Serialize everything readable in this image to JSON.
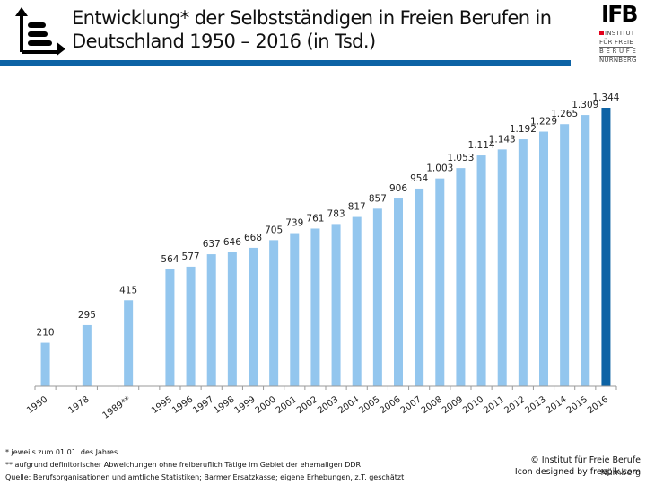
{
  "header": {
    "title_line1": "Entwicklung* der Selbstständigen in Freien Berufen in",
    "title_line2": "Deutschland 1950 – 2016 (in Tsd.)",
    "icon": "bar-chart-icon",
    "rule_color": "#0d63a5"
  },
  "logo": {
    "mark": "IFB",
    "line1": "INSTITUT",
    "line2": "FÜR FREIE",
    "line3": "B E R U F E",
    "line4": "NÜRNBERG",
    "accent_color": "#e3001b"
  },
  "chart_data": {
    "type": "bar",
    "title": "Entwicklung* der Selbstständigen in Freien Berufen in Deutschland 1950 – 2016 (in Tsd.)",
    "xlabel": "",
    "ylabel": "",
    "ylim": [
      0,
      1344
    ],
    "grid": false,
    "legend": "none",
    "categories": [
      "1950",
      "1978",
      "1989**",
      "1995",
      "1996",
      "1997",
      "1998",
      "1999",
      "2000",
      "2001",
      "2002",
      "2003",
      "2004",
      "2005",
      "2006",
      "2007",
      "2008",
      "2009",
      "2010",
      "2011",
      "2012",
      "2013",
      "2014",
      "2015",
      "2016"
    ],
    "values": [
      210,
      295,
      415,
      564,
      577,
      637,
      646,
      668,
      705,
      739,
      761,
      783,
      817,
      857,
      906,
      954,
      1003,
      1053,
      1114,
      1143,
      1192,
      1229,
      1265,
      1309,
      1344
    ],
    "value_labels": [
      "210",
      "295",
      "415",
      "564",
      "577",
      "637",
      "646",
      "668",
      "705",
      "739",
      "761",
      "783",
      "817",
      "857",
      "906",
      "954",
      "1.003",
      "1.053",
      "1.114",
      "1.143",
      "1.192",
      "1.229",
      "1.265",
      "1.309",
      "1.344"
    ],
    "slot_index": [
      0,
      2,
      4,
      6,
      7,
      8,
      9,
      10,
      11,
      12,
      13,
      14,
      15,
      16,
      17,
      18,
      19,
      20,
      21,
      22,
      23,
      24,
      25,
      26,
      27
    ],
    "total_slots": 28,
    "bar_color": "#93c6ee",
    "highlight_color": "#0d63a5",
    "highlight_category": "2016"
  },
  "footer": {
    "note1": "* jeweils zum 01.01. des Jahres",
    "note2": "** aufgrund definitorischer Abweichungen ohne freiberuflich Tätige im Gebiet der ehemaligen DDR",
    "source_key": "Quelle:",
    "source_text": " Berufsorganisationen und amtliche Statistiken; Barmer Ersatzkasse; eigene Erhebungen, z.T. geschätzt",
    "copyright": "© Institut für Freie Berufe",
    "icon_credit": "Icon designed by freepik.com",
    "city": "Nürnberg"
  }
}
